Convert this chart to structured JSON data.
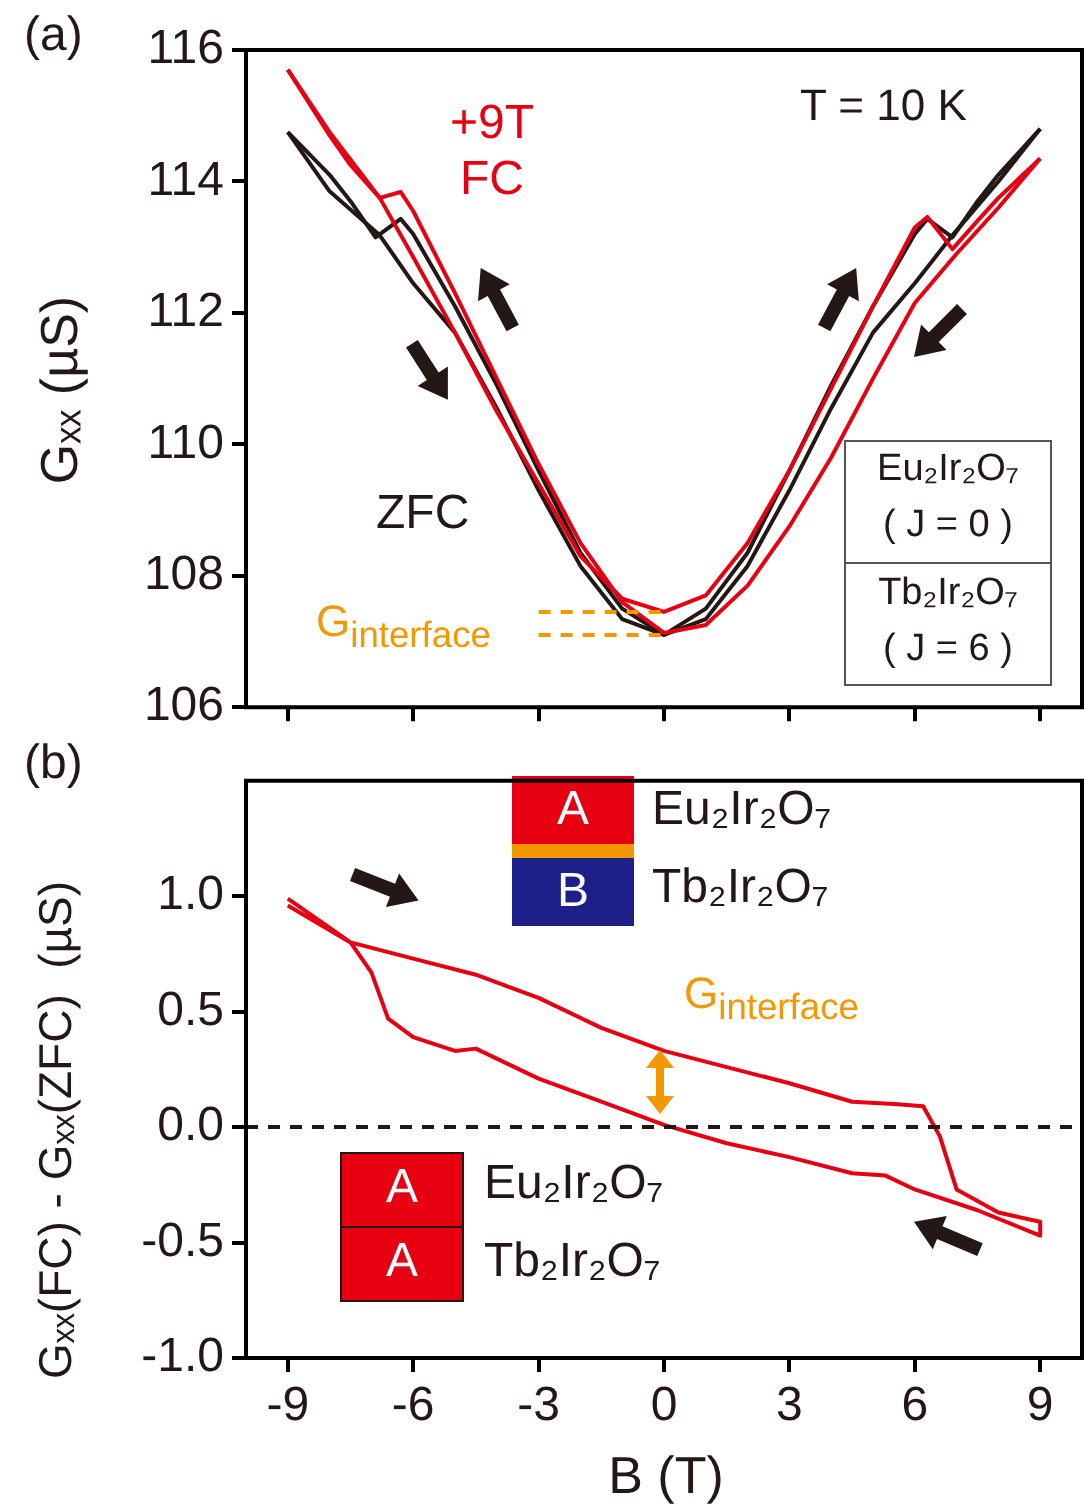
{
  "chart_data": [
    {
      "type": "line",
      "ylabel": "Gₓₓ (µS)",
      "xlim": [
        -10,
        10
      ],
      "xticks": [
        -9,
        -6,
        -3,
        0,
        3,
        6,
        9
      ],
      "ylim": [
        106,
        116
      ],
      "yticks": [
        106,
        108,
        110,
        112,
        114,
        116
      ],
      "tick_labels": "y",
      "grid": false,
      "legend": false,
      "marker": "none",
      "annotations": [
        "(a)",
        "T = 10 K",
        "G$_{interface}$",
        "Eu₂Ir₂O₇",
        "( J = 0 )",
        "Tb₂Ir₂O₇",
        "( J = 6 )"
      ],
      "series": [
        {
          "name": "ZFC",
          "color": "#231815",
          "x": [
            -9,
            -8,
            -6.8,
            -6,
            -5,
            -4,
            -3,
            -2,
            -1,
            0,
            1,
            2,
            3,
            4,
            5,
            6,
            6.3,
            6.9,
            7.5,
            8,
            9
          ],
          "values": [
            114.75,
            113.85,
            113.18,
            112.45,
            111.7,
            110.55,
            109.3,
            108.15,
            107.34,
            107.1,
            107.5,
            108.35,
            109.6,
            110.9,
            112.1,
            113.2,
            113.43,
            113.15,
            113.7,
            114.1,
            114.8
          ]
        },
        {
          "color": "#231815",
          "x": [
            -9,
            -8,
            -7.5,
            -6.9,
            -6.3,
            -6,
            -5,
            -4,
            -3,
            -2,
            -1,
            0,
            1,
            2,
            3,
            4,
            5,
            6,
            6.9,
            8,
            9
          ],
          "values": [
            114.75,
            114.1,
            113.7,
            113.15,
            113.43,
            113.2,
            112.1,
            110.9,
            109.6,
            108.35,
            107.5,
            107.1,
            107.34,
            108.15,
            109.3,
            110.55,
            111.7,
            112.45,
            113.18,
            114.0,
            114.8
          ]
        },
        {
          "name": "+9T FC",
          "color": "#e60012",
          "x": [
            -9,
            -8,
            -6.8,
            -6,
            -5,
            -4,
            -3,
            -2,
            -1,
            0,
            1,
            2,
            3,
            4,
            5,
            6,
            6.3,
            6.9,
            7.5,
            8,
            9
          ],
          "values": [
            115.7,
            114.75,
            113.75,
            112.85,
            111.7,
            110.5,
            109.4,
            108.3,
            107.65,
            107.45,
            107.7,
            108.5,
            109.6,
            110.85,
            112.1,
            113.3,
            113.46,
            112.97,
            113.4,
            113.75,
            114.35
          ]
        },
        {
          "color": "#e60012",
          "x": [
            -9,
            -8,
            -7.5,
            -6.8,
            -6.3,
            -6,
            -5,
            -4,
            -3,
            -2,
            -1,
            0,
            1,
            2,
            3,
            4,
            5,
            6,
            7,
            8,
            9
          ],
          "values": [
            115.7,
            114.7,
            114.25,
            113.75,
            113.84,
            113.55,
            112.3,
            111.0,
            109.7,
            108.5,
            107.6,
            107.13,
            107.25,
            107.85,
            108.75,
            109.8,
            111.0,
            112.15,
            112.9,
            113.6,
            114.35
          ]
        },
        {
          "color": "#f39800",
          "line_style": "dashed",
          "x": [
            -3,
            0
          ],
          "values": [
            107.45,
            107.45
          ]
        },
        {
          "color": "#f39800",
          "line_style": "dashed",
          "x": [
            -3,
            0
          ],
          "values": [
            107.1,
            107.1
          ]
        }
      ]
    },
    {
      "type": "line",
      "xlabel": "B (T)",
      "ylabel": "Gₓₓ(FC) - Gₓₓ(ZFC)  (µS)",
      "xlim": [
        -10,
        10
      ],
      "xticks": [
        -9,
        -6,
        -3,
        0,
        3,
        6,
        9
      ],
      "ylim": [
        -1,
        1.5
      ],
      "yticks": [
        {
          "value": -1,
          "label": "-1.0"
        },
        -0.5,
        {
          "value": 0,
          "label": "0.0"
        },
        0.5,
        {
          "value": 1,
          "label": "1.0"
        }
      ],
      "grid": false,
      "legend": false,
      "marker": "none",
      "ref_lines": [
        {
          "axis": "y",
          "value": 0,
          "color": "#231815",
          "line_style": "dashed"
        }
      ],
      "annotations": [
        "(b)",
        "G$_{interface}$",
        "A",
        "B",
        "Eu₂Ir₂O₇",
        "Tb₂Ir₂O₇",
        "A",
        "A",
        "Eu₂Ir₂O₇",
        "Tb₂Ir₂O₇"
      ],
      "series": [
        {
          "color": "#e60012",
          "x": [
            -9,
            -7.5,
            -6,
            -4.5,
            -3,
            -1.5,
            0,
            1.5,
            3,
            4.5,
            5.5,
            6.2,
            6.6,
            7,
            8,
            9,
            9,
            7.5,
            6,
            5.3,
            4.5,
            3,
            1.5,
            0,
            -1.5,
            -3,
            -4.5,
            -5,
            -6,
            -6.6,
            -7,
            -7.5,
            -9
          ],
          "values": [
            0.99,
            0.8,
            0.73,
            0.66,
            0.56,
            0.43,
            0.33,
            0.26,
            0.19,
            0.11,
            0.1,
            0.09,
            -0.04,
            -0.27,
            -0.37,
            -0.41,
            -0.47,
            -0.36,
            -0.27,
            -0.21,
            -0.2,
            -0.13,
            -0.07,
            0.01,
            0.11,
            0.21,
            0.34,
            0.33,
            0.39,
            0.47,
            0.67,
            0.8,
            0.96
          ]
        }
      ]
    }
  ]
}
